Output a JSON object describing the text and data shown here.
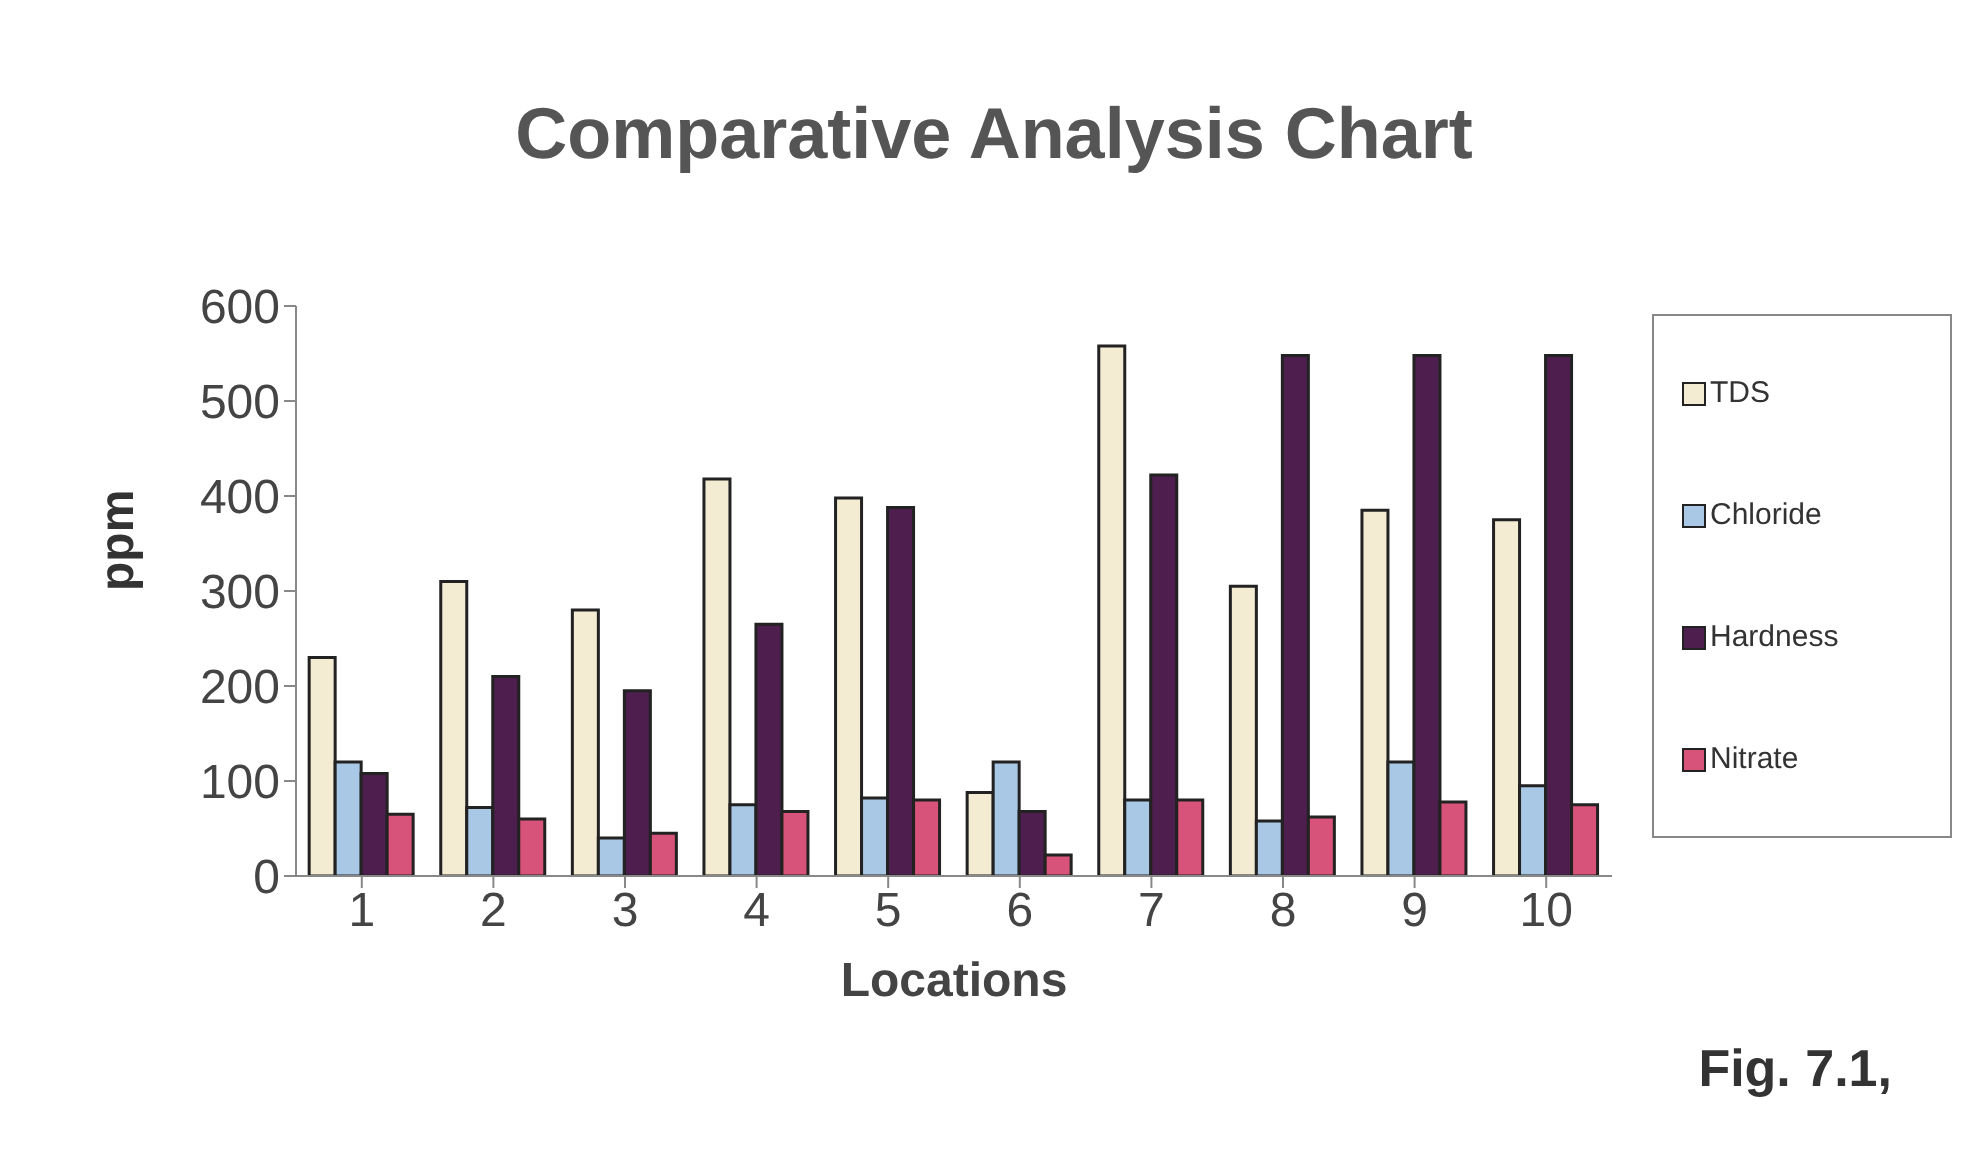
{
  "chart_data": {
    "type": "bar",
    "title": "Comparative Analysis Chart",
    "xlabel": "Locations",
    "ylabel": "ppm",
    "annotations": [
      "Fig. 7.1,"
    ],
    "categories": [
      "1",
      "2",
      "3",
      "4",
      "5",
      "6",
      "7",
      "8",
      "9",
      "10"
    ],
    "series": [
      {
        "name": "TDS",
        "color": "#f3ecd3",
        "values": [
          230,
          310,
          280,
          418,
          398,
          88,
          558,
          305,
          385,
          375
        ]
      },
      {
        "name": "Chloride",
        "color": "#a9c8e6",
        "values": [
          120,
          72,
          40,
          75,
          82,
          120,
          80,
          58,
          120,
          95
        ]
      },
      {
        "name": "Hardness",
        "color": "#4e1f4e",
        "values": [
          108,
          210,
          195,
          265,
          388,
          68,
          422,
          548,
          548,
          548
        ]
      },
      {
        "name": "Nitrate",
        "color": "#d8537a",
        "values": [
          65,
          60,
          45,
          68,
          80,
          22,
          80,
          62,
          78,
          75
        ]
      }
    ],
    "ylim": [
      0,
      600
    ],
    "yticks": [
      0,
      100,
      200,
      300,
      400,
      500,
      600
    ],
    "legend": "right"
  }
}
